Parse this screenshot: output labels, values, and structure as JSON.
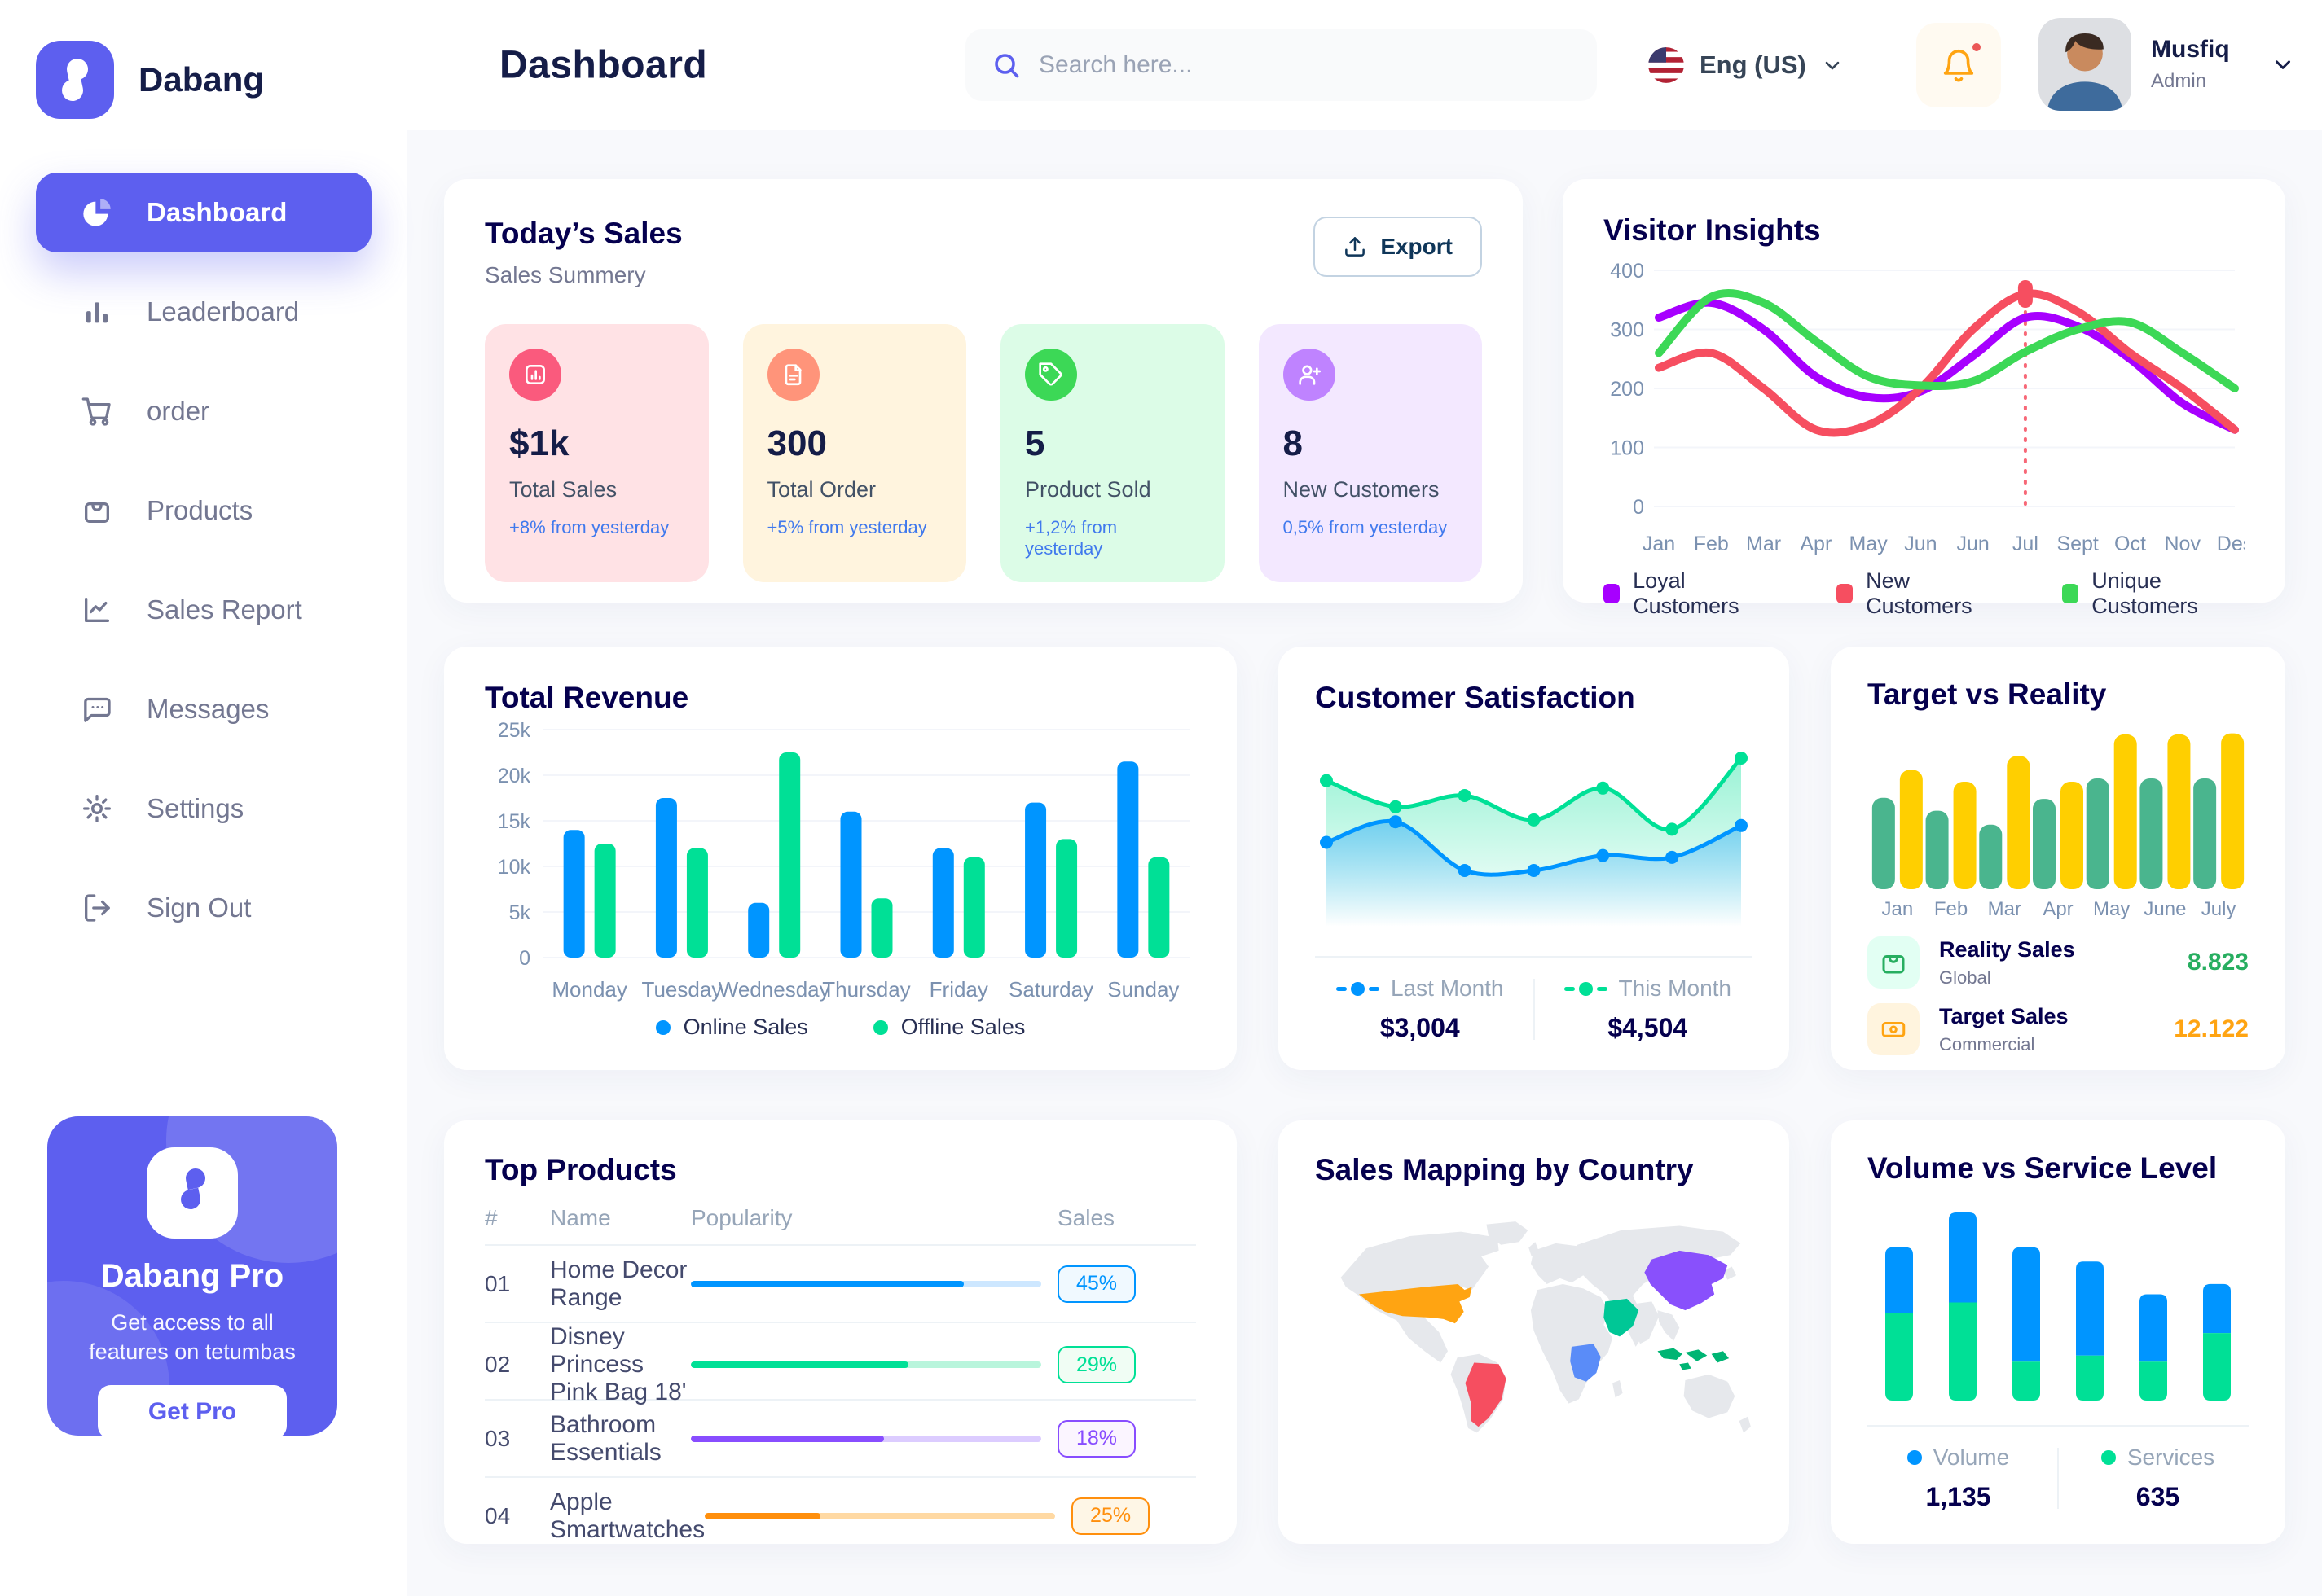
{
  "app": {
    "brand": "Dabang",
    "page_title": "Dashboard"
  },
  "header": {
    "search_placeholder": "Search here...",
    "language": "Eng (US)",
    "user_name": "Musfiq",
    "user_role": "Admin"
  },
  "sidebar": {
    "items": [
      {
        "label": "Dashboard",
        "icon": "dashboard",
        "active": true
      },
      {
        "label": "Leaderboard",
        "icon": "leaderboard",
        "active": false
      },
      {
        "label": "order",
        "icon": "order",
        "active": false
      },
      {
        "label": "Products",
        "icon": "products",
        "active": false
      },
      {
        "label": "Sales Report",
        "icon": "sales-report",
        "active": false
      },
      {
        "label": "Messages",
        "icon": "messages",
        "active": false
      },
      {
        "label": "Settings",
        "icon": "settings",
        "active": false
      },
      {
        "label": "Sign Out",
        "icon": "sign-out",
        "active": false
      }
    ],
    "promo": {
      "title": "Dabang Pro",
      "subtitle": "Get access to all features on tetumbas",
      "button": "Get Pro"
    }
  },
  "today_sales": {
    "title": "Today’s Sales",
    "subtitle": "Sales Summery",
    "export_label": "Export",
    "stats": [
      {
        "value": "$1k",
        "label": "Total Sales",
        "delta": "+8% from yesterday",
        "bg": "#FFE2E5",
        "icon_bg": "#FA5A7D",
        "icon": "chart",
        "delta_color": "#4079ED"
      },
      {
        "value": "300",
        "label": "Total Order",
        "delta": "+5% from yesterday",
        "bg": "#FFF4DE",
        "icon_bg": "#FF947A",
        "icon": "file",
        "delta_color": "#4079ED"
      },
      {
        "value": "5",
        "label": "Product Sold",
        "delta": "+1,2% from yesterday",
        "bg": "#DCFCE7",
        "icon_bg": "#3CD856",
        "icon": "tag",
        "delta_color": "#4079ED"
      },
      {
        "value": "8",
        "label": "New Customers",
        "delta": "0,5% from yesterday",
        "bg": "#F3E8FF",
        "icon_bg": "#BF83FF",
        "icon": "user-plus",
        "delta_color": "#4079ED"
      }
    ]
  },
  "palette": {
    "primary": "#5D5FEF",
    "heading": "#05004E",
    "muted": "#737791",
    "axis": "#7B91B0"
  },
  "chart_data": [
    {
      "id": "visitor_insights",
      "type": "line",
      "title": "Visitor Insights",
      "x": [
        "Jan",
        "Feb",
        "Mar",
        "Apr",
        "May",
        "Jun",
        "Jun",
        "Jul",
        "Sept",
        "Oct",
        "Nov",
        "Des"
      ],
      "ylim": [
        0,
        400
      ],
      "yticks": [
        0,
        100,
        200,
        300,
        400
      ],
      "legend_position": "bottom",
      "grid": true,
      "series": [
        {
          "name": "Loyal Customers",
          "color": "#A700FF",
          "values": [
            320,
            345,
            300,
            220,
            185,
            195,
            255,
            320,
            305,
            250,
            175,
            130
          ]
        },
        {
          "name": "New Customers",
          "color": "#F64E60",
          "values": [
            235,
            260,
            200,
            130,
            138,
            200,
            300,
            360,
            330,
            260,
            200,
            130
          ]
        },
        {
          "name": "Unique Customers",
          "color": "#3CD856",
          "values": [
            260,
            355,
            345,
            280,
            220,
            205,
            212,
            262,
            300,
            312,
            260,
            200
          ]
        }
      ],
      "marker": {
        "series": 1,
        "x_index": 7,
        "value": 360
      }
    },
    {
      "id": "total_revenue",
      "type": "bar",
      "title": "Total Revenue",
      "categories": [
        "Monday",
        "Tuesday",
        "Wednesday",
        "Thursday",
        "Friday",
        "Saturday",
        "Sunday"
      ],
      "ylim": [
        0,
        25000
      ],
      "yticks": [
        0,
        5000,
        10000,
        15000,
        20000,
        25000
      ],
      "ytick_labels": [
        "0",
        "5k",
        "10k",
        "15k",
        "20k",
        "25k"
      ],
      "grid": true,
      "legend_position": "bottom",
      "series": [
        {
          "name": "Online Sales",
          "color": "#0095FF",
          "values": [
            14000,
            17500,
            6000,
            16000,
            12000,
            17000,
            21500
          ]
        },
        {
          "name": "Offline Sales",
          "color": "#00E096",
          "values": [
            12500,
            12000,
            22500,
            6500,
            11000,
            13000,
            11000
          ]
        }
      ]
    },
    {
      "id": "customer_satisfaction",
      "type": "area",
      "title": "Customer Satisfaction",
      "ylim": [
        0,
        100
      ],
      "grid": false,
      "legend_position": "bottom",
      "series": [
        {
          "name": "Last Month",
          "color": "#0095FF",
          "values": [
            45,
            56,
            30,
            30,
            38,
            37,
            54
          ],
          "total": "$3,004"
        },
        {
          "name": "This Month",
          "color": "#00E096",
          "values": [
            78,
            64,
            70,
            57,
            74,
            52,
            90
          ],
          "total": "$4,504"
        }
      ]
    },
    {
      "id": "target_vs_reality",
      "type": "bar",
      "title": "Target vs Reality",
      "categories": [
        "Jan",
        "Feb",
        "Mar",
        "Apr",
        "May",
        "June",
        "July"
      ],
      "ylim": [
        0,
        15
      ],
      "grid": false,
      "legend_position": "bottom-list",
      "series": [
        {
          "name": "Reality Sales",
          "subtitle": "Global",
          "color": "#4AB58E",
          "value_label": "8.823",
          "value_color": "#27AE60",
          "tile_bg": "#E2FFF3",
          "values": [
            8.5,
            7.3,
            6.0,
            8.4,
            10.3,
            10.3,
            10.3
          ]
        },
        {
          "name": "Target Sales",
          "subtitle": "Commercial",
          "color": "#FFCF00",
          "value_label": "12.122",
          "value_color": "#FFA412",
          "tile_bg": "#FFF4DE",
          "values": [
            11.1,
            10.0,
            12.4,
            10.0,
            14.4,
            14.4,
            14.5
          ]
        }
      ]
    },
    {
      "id": "volume_service",
      "type": "stacked-bar",
      "title": "Volume vs Service Level",
      "legend_position": "bottom",
      "series": [
        {
          "name": "Volume",
          "color": "#0095FF",
          "total": "1,135",
          "values": [
            320,
            440,
            560,
            460,
            330,
            240
          ]
        },
        {
          "name": "Services",
          "color": "#00E096",
          "total": "635",
          "values": [
            430,
            480,
            190,
            220,
            190,
            330
          ]
        }
      ]
    },
    {
      "id": "top_products",
      "type": "table",
      "title": "Top Products",
      "columns": [
        "#",
        "Name",
        "Popularity",
        "Sales"
      ],
      "rows": [
        {
          "num": "01",
          "name": "Home Decor Range",
          "popularity_pct": 78,
          "sales": "45%",
          "color": "#0095FF",
          "track": "#CDE7FF",
          "badge_bg": "#F0F9FF"
        },
        {
          "num": "02",
          "name": "Disney Princess Pink Bag 18'",
          "popularity_pct": 62,
          "sales": "29%",
          "color": "#00E096",
          "track": "#B9F5DC",
          "badge_bg": "#F0FDF4"
        },
        {
          "num": "03",
          "name": "Bathroom Essentials",
          "popularity_pct": 55,
          "sales": "18%",
          "color": "#884DFF",
          "track": "#DCCCFF",
          "badge_bg": "#FBF5FF"
        },
        {
          "num": "04",
          "name": "Apple Smartwatches",
          "popularity_pct": 33,
          "sales": "25%",
          "color": "#FF8F0D",
          "track": "#FFD9A3",
          "badge_bg": "#FEF6E6"
        }
      ]
    },
    {
      "id": "sales_mapping",
      "type": "map",
      "title": "Sales Mapping by Country",
      "base_color": "#E6E8EC",
      "regions": [
        {
          "name": "United States",
          "color": "#FFA412"
        },
        {
          "name": "Brazil",
          "color": "#F64E60"
        },
        {
          "name": "Saudi Arabia",
          "color": "#00C796"
        },
        {
          "name": "DR Congo",
          "color": "#5A8CF8"
        },
        {
          "name": "China",
          "color": "#8950FC"
        },
        {
          "name": "Indonesia",
          "color": "#00B574"
        }
      ]
    }
  ]
}
